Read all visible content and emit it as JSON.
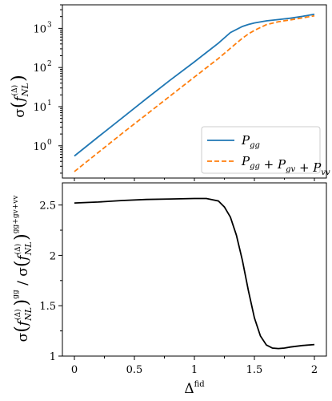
{
  "chart_data": [
    {
      "type": "line",
      "panel": "top",
      "yscale": "log",
      "xlim": [
        -0.1,
        2.1
      ],
      "ylim": [
        0.15,
        4000
      ],
      "ytick_labels": [
        "10",
        "10",
        "10",
        "10"
      ],
      "ytick_exponents": [
        "0",
        "1",
        "2",
        "3"
      ],
      "ylabel": "σ(f_NL^(Δ))",
      "legend_position": "lower-right",
      "series": [
        {
          "name": "P_gg",
          "legend_parts": [
            {
              "t": "P",
              "s": "gg"
            }
          ],
          "color": "#1f77b4",
          "style": "solid",
          "x": [
            0,
            0.2,
            0.4,
            0.6,
            0.8,
            1.0,
            1.2,
            1.3,
            1.4,
            1.45,
            1.5,
            1.6,
            1.7,
            1.8,
            1.9,
            2.0
          ],
          "y": [
            0.55,
            1.7,
            5.2,
            16,
            48,
            140,
            420,
            780,
            1120,
            1260,
            1380,
            1560,
            1680,
            1820,
            2030,
            2300
          ]
        },
        {
          "name": "P_gg + P_gv + P_vv",
          "legend_parts": [
            {
              "t": "P",
              "s": "gg"
            },
            {
              "t": " + P",
              "s": "gv"
            },
            {
              "t": " + P",
              "s": "vv"
            }
          ],
          "color": "#ff7f0e",
          "style": "dashed",
          "x": [
            0,
            0.2,
            0.4,
            0.6,
            0.8,
            1.0,
            1.2,
            1.3,
            1.4,
            1.45,
            1.5,
            1.6,
            1.7,
            1.8,
            1.9,
            2.0
          ],
          "y": [
            0.22,
            0.68,
            2.1,
            6.3,
            19,
            57,
            170,
            310,
            560,
            720,
            890,
            1250,
            1480,
            1650,
            1850,
            2100
          ]
        }
      ]
    },
    {
      "type": "line",
      "panel": "bottom",
      "xlim": [
        -0.1,
        2.1
      ],
      "ylim": [
        1.0,
        2.72
      ],
      "xticks": [
        0,
        0.5,
        1,
        1.5,
        2
      ],
      "xtick_labels": [
        "0",
        "0.5",
        "1",
        "1.5",
        "2"
      ],
      "yticks": [
        1,
        1.5,
        2,
        2.5
      ],
      "ytick_labels": [
        "1",
        "1.5",
        "2",
        "2.5"
      ],
      "xlabel": "Δ",
      "xlabel_sup": "fid",
      "ylabel": "σ(f_NL^(Δ))^gg / σ(f_NL^(Δ))^gg+gv+vv",
      "ylabel_sup1": "gg",
      "ylabel_sup2": "gg+gv+vv",
      "series": [
        {
          "color": "#000000",
          "style": "solid",
          "x": [
            0,
            0.2,
            0.4,
            0.6,
            0.8,
            1.0,
            1.1,
            1.2,
            1.25,
            1.3,
            1.35,
            1.4,
            1.45,
            1.5,
            1.55,
            1.6,
            1.65,
            1.7,
            1.75,
            1.8,
            1.9,
            2.0
          ],
          "y": [
            2.52,
            2.53,
            2.545,
            2.555,
            2.56,
            2.565,
            2.565,
            2.54,
            2.48,
            2.38,
            2.2,
            1.95,
            1.65,
            1.38,
            1.2,
            1.11,
            1.08,
            1.075,
            1.08,
            1.09,
            1.105,
            1.115
          ]
        }
      ]
    }
  ]
}
